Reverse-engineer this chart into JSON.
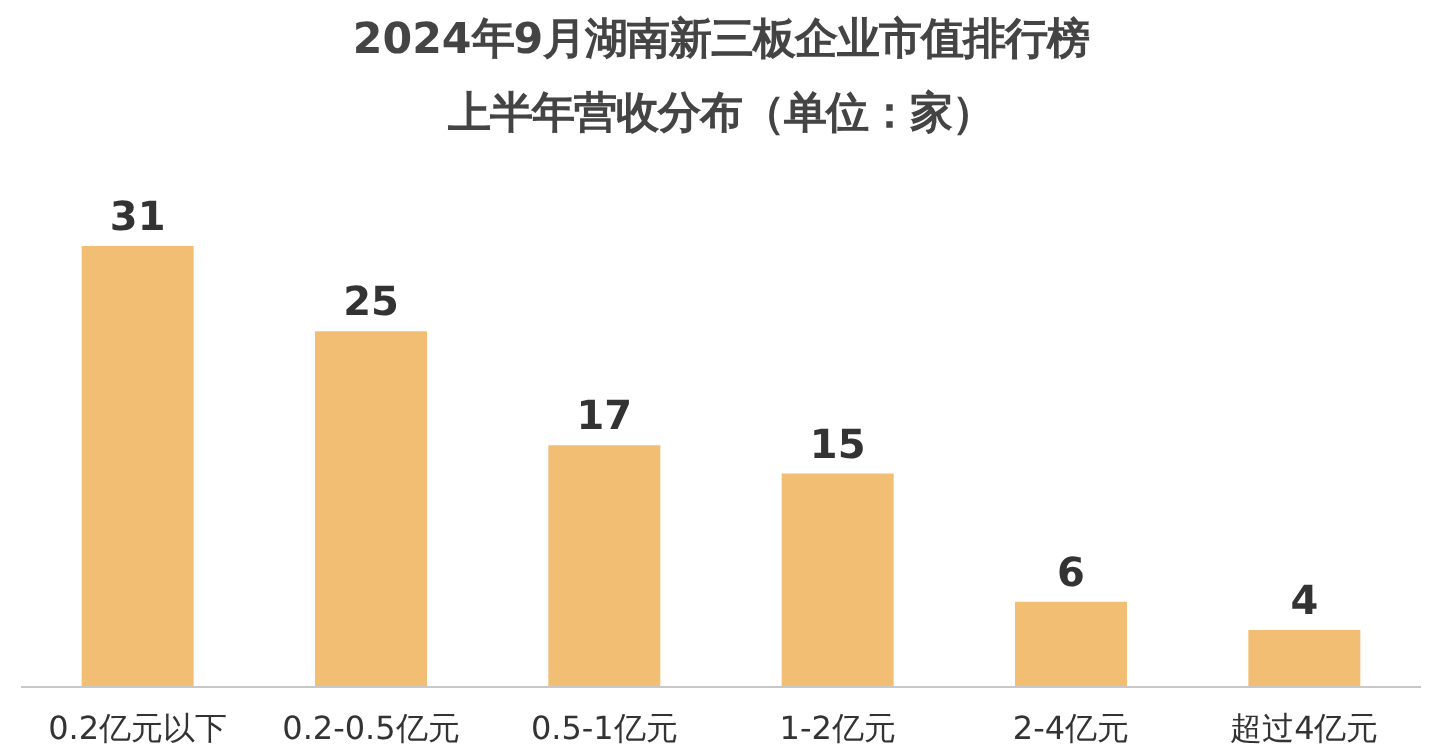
{
  "chart_data": {
    "type": "bar",
    "title": "2024年9月湖南新三板企业市值排行榜",
    "subtitle": "上半年营收分布（单位：家）",
    "categories": [
      "0.2亿元以下",
      "0.2-0.5亿元",
      "0.5-1亿元",
      "1-2亿元",
      "2-4亿元",
      "超过4亿元"
    ],
    "values": [
      31,
      25,
      17,
      15,
      6,
      4
    ],
    "color": "#f2be74",
    "data_labels": true,
    "grid": false,
    "tick_labels": "x"
  }
}
